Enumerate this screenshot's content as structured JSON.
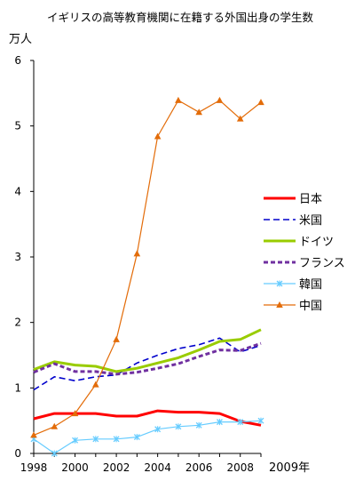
{
  "chart_data": {
    "type": "line",
    "title": "イギリスの高等教育機関に在籍する外国出身の学生数",
    "unit_label": "万人",
    "x_end_label": "2009年",
    "x": [
      1998,
      1999,
      2000,
      2001,
      2002,
      2003,
      2004,
      2005,
      2006,
      2007,
      2008,
      2009
    ],
    "xlim": [
      1998,
      2009
    ],
    "x_ticks": [
      "1998",
      "2000",
      "2002",
      "2004",
      "2006",
      "2008"
    ],
    "ylim": [
      0,
      6
    ],
    "y_ticks": [
      "0",
      "1",
      "2",
      "3",
      "4",
      "5",
      "6"
    ],
    "grid": false,
    "legend_position": "right",
    "series": [
      {
        "name": "日本",
        "color": "#ff0000",
        "style": "solid-thick",
        "marker": "none",
        "values": [
          0.53,
          0.61,
          0.61,
          0.61,
          0.57,
          0.57,
          0.65,
          0.63,
          0.63,
          0.61,
          0.49,
          0.43
        ]
      },
      {
        "name": "米国",
        "color": "#0000cc",
        "style": "dashed",
        "marker": "none",
        "values": [
          0.97,
          1.17,
          1.11,
          1.17,
          1.2,
          1.38,
          1.5,
          1.6,
          1.66,
          1.76,
          1.55,
          1.65
        ]
      },
      {
        "name": "ドイツ",
        "color": "#99cc00",
        "style": "solid-thick",
        "marker": "none",
        "values": [
          1.28,
          1.4,
          1.35,
          1.33,
          1.25,
          1.3,
          1.38,
          1.46,
          1.58,
          1.71,
          1.74,
          1.89
        ]
      },
      {
        "name": "フランス",
        "color": "#7030a0",
        "style": "dashed-thick",
        "marker": "none",
        "values": [
          1.24,
          1.37,
          1.25,
          1.25,
          1.21,
          1.24,
          1.3,
          1.37,
          1.48,
          1.58,
          1.57,
          1.68
        ]
      },
      {
        "name": "韓国",
        "color": "#66ccff",
        "style": "solid",
        "marker": "x",
        "values": [
          0.22,
          0.0,
          0.2,
          0.22,
          0.22,
          0.25,
          0.37,
          0.41,
          0.43,
          0.48,
          0.48,
          0.5
        ]
      },
      {
        "name": "中国",
        "color": "#e36c09",
        "style": "solid",
        "marker": "triangle",
        "values": [
          0.28,
          0.41,
          0.61,
          1.05,
          1.74,
          3.05,
          4.84,
          5.39,
          5.21,
          5.39,
          5.11,
          5.36
        ]
      }
    ]
  }
}
